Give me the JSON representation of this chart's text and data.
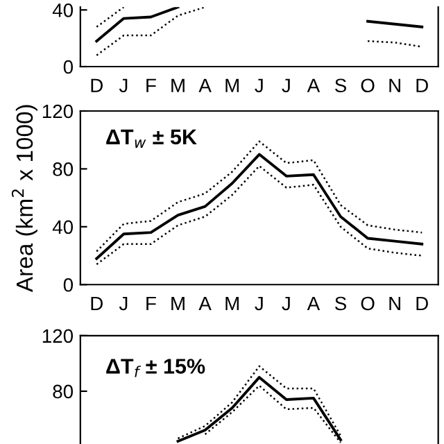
{
  "chart_data": [
    {
      "type": "line",
      "categories": [
        "D",
        "J",
        "F",
        "M",
        "A",
        "M",
        "J",
        "J",
        "A",
        "S",
        "O",
        "N",
        "D"
      ],
      "ylim": [
        0,
        42
      ],
      "yticks": [
        0,
        40
      ],
      "grid": false,
      "series": [
        {
          "color": "#000000",
          "line_style": "solid",
          "values": [
            18,
            34,
            35,
            42,
            null,
            null,
            null,
            null,
            null,
            null,
            32,
            30,
            28
          ]
        },
        {
          "color": "#000000",
          "line_style": "dotted",
          "values": [
            28,
            42,
            null,
            null,
            null,
            null,
            null,
            null,
            null,
            null,
            null,
            null,
            null
          ]
        },
        {
          "color": "#000000",
          "line_style": "dotted",
          "values": [
            8,
            22,
            22,
            36,
            42,
            null,
            null,
            null,
            null,
            null,
            18,
            17,
            14
          ]
        }
      ]
    },
    {
      "type": "line",
      "categories": [
        "D",
        "J",
        "F",
        "M",
        "A",
        "M",
        "J",
        "J",
        "A",
        "S",
        "O",
        "N",
        "D"
      ],
      "ylim": [
        0,
        120
      ],
      "yticks": [
        0,
        40,
        80,
        120
      ],
      "ylabel": "Area (km$^{2}$ x 1000)",
      "annotations": [
        "ΔT$_{w}$ ± 5K"
      ],
      "grid": false,
      "series": [
        {
          "color": "#000000",
          "line_style": "solid",
          "values": [
            18,
            35,
            36,
            48,
            54,
            70,
            90,
            75,
            76,
            47,
            32,
            30,
            28
          ]
        },
        {
          "color": "#000000",
          "line_style": "dotted",
          "values": [
            23,
            42,
            44,
            57,
            63,
            78,
            99,
            84,
            86,
            55,
            41,
            38,
            36
          ]
        },
        {
          "color": "#000000",
          "line_style": "dotted",
          "values": [
            14,
            28,
            28,
            41,
            47,
            62,
            82,
            67,
            69,
            40,
            25,
            22,
            20
          ]
        }
      ]
    },
    {
      "type": "line",
      "categories": [
        null,
        null,
        null,
        null,
        null,
        null,
        null,
        null,
        null,
        null,
        null,
        null,
        null
      ],
      "ylim": [
        42,
        120
      ],
      "yticks": [
        80,
        120
      ],
      "annotations": [
        "ΔT$_{f}$ ± 15%"
      ],
      "grid": false,
      "series": [
        {
          "color": "#000000",
          "line_style": "solid",
          "values": [
            null,
            null,
            null,
            44,
            52,
            68,
            90,
            74,
            75,
            45,
            null,
            null,
            null
          ]
        },
        {
          "color": "#000000",
          "line_style": "dotted",
          "values": [
            null,
            null,
            null,
            46,
            55,
            72,
            98,
            82,
            82,
            48,
            null,
            null,
            null
          ]
        },
        {
          "color": "#000000",
          "line_style": "dotted",
          "values": [
            null,
            null,
            null,
            null,
            49,
            65,
            84,
            67,
            68,
            43,
            null,
            null,
            null
          ]
        }
      ]
    }
  ]
}
